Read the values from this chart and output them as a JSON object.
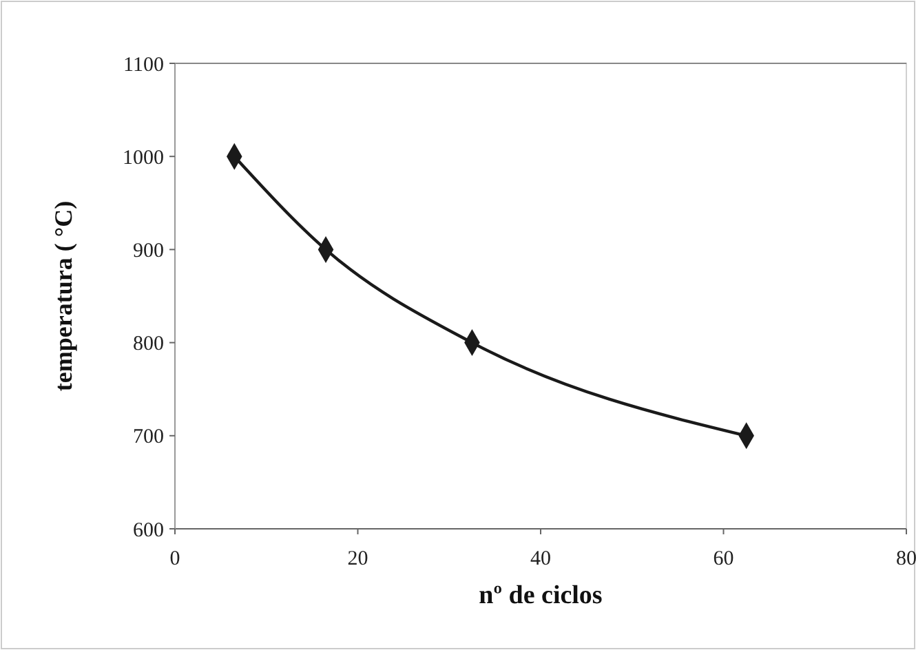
{
  "chart_data": {
    "type": "line",
    "xlabel": "nº de ciclos",
    "ylabel": "temperatura ( °C)",
    "x": [
      6.5,
      16.5,
      32.5,
      62.5
    ],
    "series": [
      {
        "color": "#1a1a1a",
        "values": [
          1000,
          900,
          800,
          700
        ]
      }
    ],
    "xlim": [
      0,
      80
    ],
    "xticks": [
      0,
      20,
      40,
      60,
      80
    ],
    "ylim": [
      600,
      1100
    ],
    "yticks": [
      600,
      700,
      800,
      900,
      1000,
      1100
    ],
    "grid": false,
    "marker": "diamond",
    "line_style": "solid"
  }
}
